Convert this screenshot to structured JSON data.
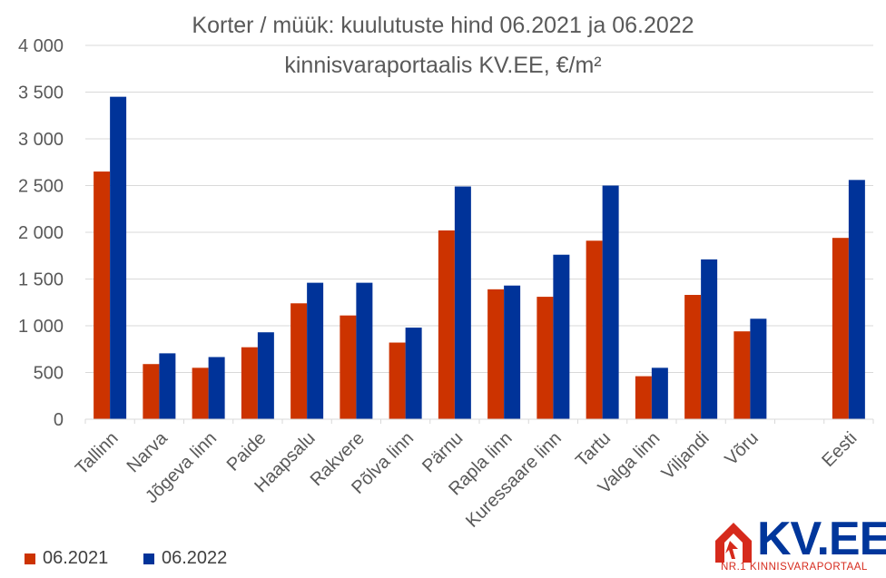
{
  "chart_data": {
    "type": "bar",
    "title": "Korter / müük: kuulutuste hind 06.2021 ja 06.2022",
    "subtitle": "kinnisvaraportaalis KV.EE, €/m²",
    "categories": [
      "Tallinn",
      "Narva",
      "Jõgeva linn",
      "Paide",
      "Haapsalu",
      "Rakvere",
      "Põlva linn",
      "Pärnu",
      "Rapla linn",
      "Kuressaare linn",
      "Tartu",
      "Valga linn",
      "Viljandi",
      "Võru",
      "",
      "Eesti"
    ],
    "series": [
      {
        "name": "06.2021",
        "color": "#cc3300",
        "values": [
          2650,
          590,
          550,
          770,
          1240,
          1110,
          820,
          2020,
          1390,
          1310,
          1910,
          460,
          1330,
          940,
          null,
          1940
        ]
      },
      {
        "name": "06.2022",
        "color": "#003399",
        "values": [
          3450,
          705,
          665,
          930,
          1460,
          1460,
          980,
          2490,
          1430,
          1760,
          2500,
          550,
          1710,
          1075,
          null,
          2560
        ]
      }
    ],
    "ylim": [
      0,
      4000
    ],
    "yticks": [
      0,
      500,
      1000,
      1500,
      2000,
      2500,
      3000,
      3500,
      4000
    ],
    "ytick_labels": [
      "0",
      "500",
      "1 000",
      "1 500",
      "2 000",
      "2 500",
      "3 000",
      "3 500",
      "4 000"
    ],
    "grid": true,
    "legend_position": "bottom-left"
  },
  "logo": {
    "text": "KV.EE",
    "tagline": "NR.1 KINNISVARAPORTAAL"
  }
}
